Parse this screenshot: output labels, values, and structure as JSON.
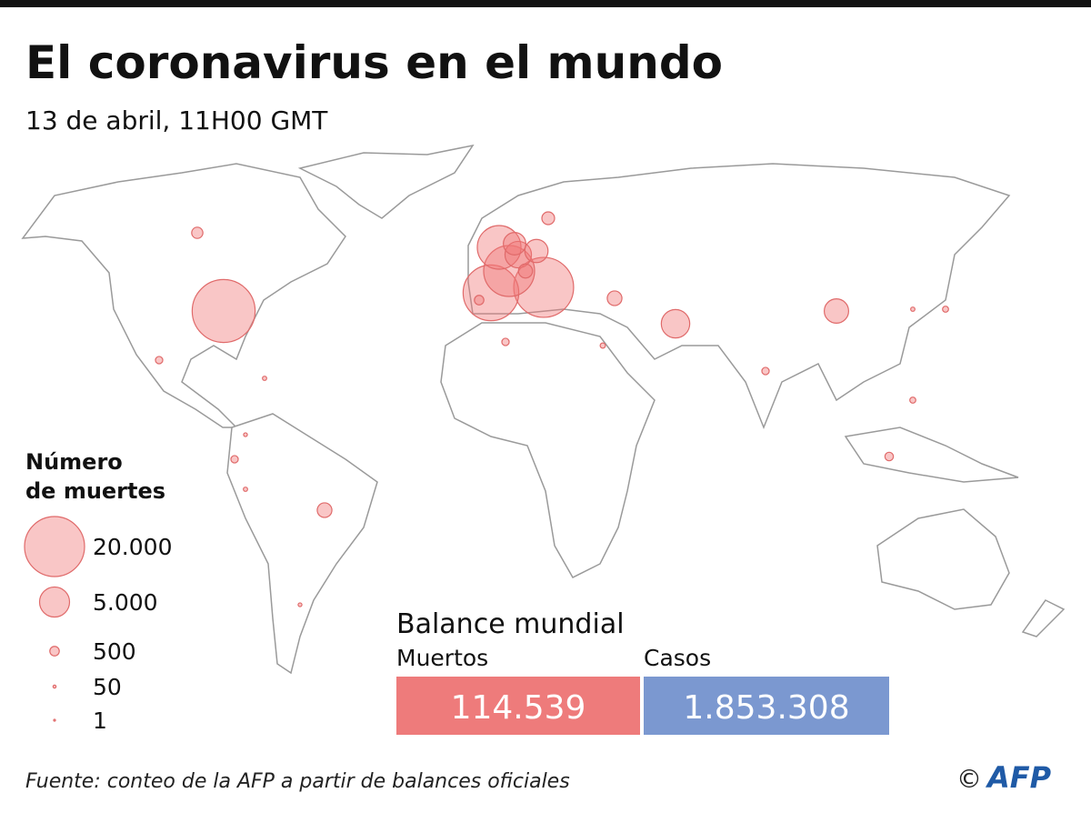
{
  "header": {
    "title": "El coronavirus en el mundo",
    "subtitle": "13 de abril, 11H00 GMT"
  },
  "map": {
    "bubble_values": [
      22000,
      19900,
      17200,
      14400,
      10600,
      3900,
      2800,
      3000,
      1100,
      4500,
      3300,
      1200,
      1200,
      700,
      300,
      900,
      500,
      300,
      100,
      300,
      400,
      200,
      150,
      300,
      100,
      200,
      100,
      80,
      80
    ]
  },
  "legend": {
    "title_line1": "Número",
    "title_line2": "de muertes",
    "sizes": [
      {
        "value": 20000,
        "label": "20.000"
      },
      {
        "value": 5000,
        "label": "5.000"
      },
      {
        "value": 500,
        "label": "500"
      },
      {
        "value": 50,
        "label": "50"
      },
      {
        "value": 1,
        "label": "1"
      }
    ]
  },
  "balance": {
    "title": "Balance mundial",
    "deaths_label": "Muertos",
    "deaths": "114.539",
    "cases_label": "Casos",
    "cases": "1.853.308"
  },
  "footer": {
    "source": "Fuente: conteo de la AFP a partir de balances oficiales",
    "copyright": "©",
    "logo": "AFP"
  }
}
